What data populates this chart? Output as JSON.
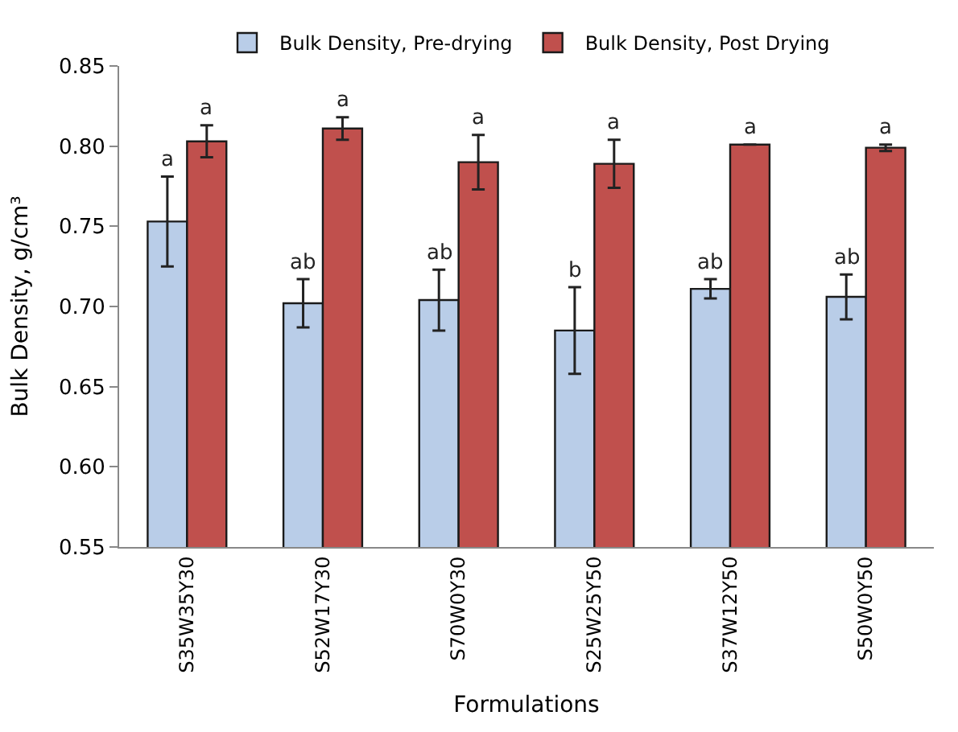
{
  "chart_data": {
    "type": "bar",
    "xlabel": "Formulations",
    "ylabel": "Bulk Density, g/cm³",
    "categories": [
      "S35W35Y30",
      "S52W17Y30",
      "S70W0Y30",
      "S25W25Y50",
      "S37W12Y50",
      "S50W0Y50"
    ],
    "series": [
      {
        "name": "Bulk Density, Pre-drying",
        "color": "#b9cde8",
        "values": [
          0.753,
          0.702,
          0.704,
          0.685,
          0.711,
          0.706
        ],
        "errors": [
          0.028,
          0.015,
          0.019,
          0.027,
          0.006,
          0.014
        ],
        "value_labels": [
          "a",
          "ab",
          "ab",
          "b",
          "ab",
          "ab"
        ]
      },
      {
        "name": "Bulk Density, Post Drying",
        "color": "#c0504d",
        "values": [
          0.803,
          0.811,
          0.79,
          0.789,
          0.801,
          0.799
        ],
        "errors": [
          0.01,
          0.007,
          0.017,
          0.015,
          null,
          0.002
        ],
        "value_labels": [
          "a",
          "a",
          "a",
          "a",
          "a",
          "a"
        ]
      }
    ],
    "ylim": [
      0.55,
      0.85
    ],
    "yticks": [
      {
        "value": 0.55,
        "label": "0.55"
      },
      {
        "value": 0.6,
        "label": "0.60"
      },
      {
        "value": 0.65,
        "label": "0.65"
      },
      {
        "value": 0.7,
        "label": "0.70"
      },
      {
        "value": 0.75,
        "label": "0.75"
      },
      {
        "value": 0.8,
        "label": "0.80"
      },
      {
        "value": 0.85,
        "label": "0.85"
      }
    ],
    "grid": false,
    "legend": "top"
  }
}
